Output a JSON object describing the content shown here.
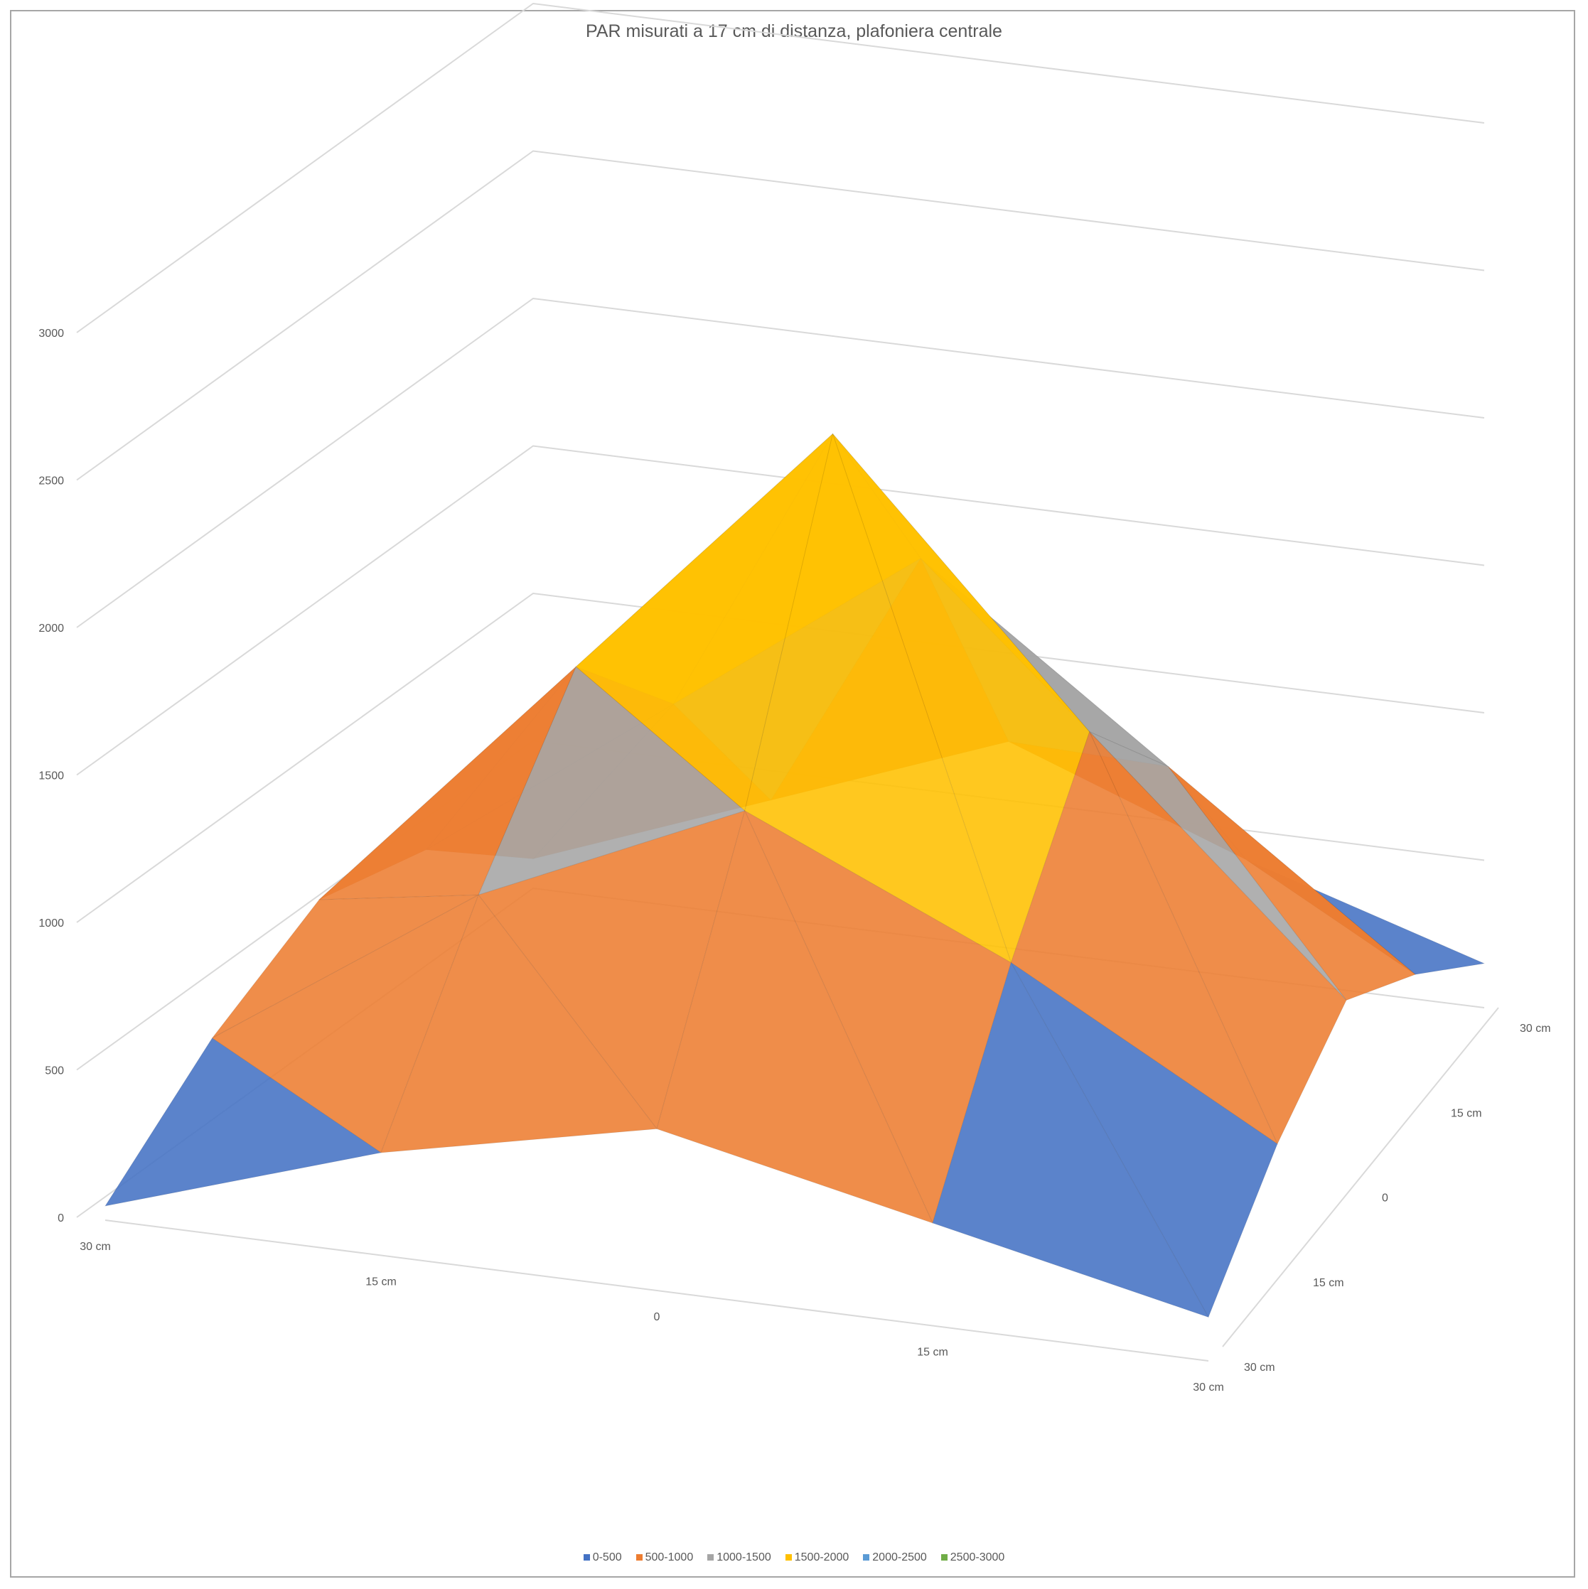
{
  "chart_data": {
    "type": "surface-3d",
    "title": "PAR misurati a 17 cm di distanza, plafoniera centrale",
    "zlim": [
      0,
      3000
    ],
    "z_ticks": [
      "0",
      "500",
      "1000",
      "1500",
      "2000",
      "2500",
      "3000"
    ],
    "x_ticks": [
      "30 cm",
      "15 cm",
      "0",
      "15 cm",
      "30 cm"
    ],
    "y_ticks": [
      "30 cm",
      "15 cm",
      "0",
      "15 cm",
      "30 cm"
    ],
    "z_values": [
      [
        0,
        300,
        500,
        300,
        100
      ],
      [
        300,
        900,
        1300,
        900,
        400
      ],
      [
        500,
        1400,
        2300,
        1400,
        600
      ],
      [
        400,
        1000,
        1600,
        1000,
        400
      ],
      [
        100,
        400,
        700,
        400,
        150
      ]
    ],
    "legend": [
      {
        "label": "0-500",
        "color": "#4472c4"
      },
      {
        "label": "500-1000",
        "color": "#ed7d31"
      },
      {
        "label": "1000-1500",
        "color": "#a5a5a5"
      },
      {
        "label": "1500-2000",
        "color": "#ffc000"
      },
      {
        "label": "2000-2500",
        "color": "#5b9bd5"
      },
      {
        "label": "2500-3000",
        "color": "#70ad47"
      }
    ],
    "legend_position": "bottom",
    "grid": true
  }
}
